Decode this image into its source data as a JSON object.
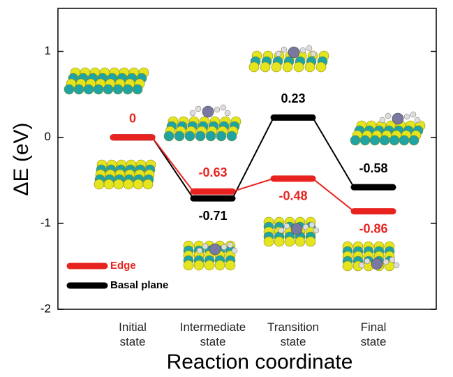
{
  "chart_data": {
    "type": "energy_levels",
    "xlabel": "Reaction coordinate",
    "ylabel": "ΔE (eV)",
    "categories": [
      "Initial state",
      "Intermediate state",
      "Transition state",
      "Final state"
    ],
    "series": [
      {
        "name": "Basal plane",
        "color": "#000000",
        "values": [
          0,
          -0.71,
          0.23,
          -0.58
        ],
        "value_labels": [
          null,
          "-0.71",
          "0.23",
          "-0.58"
        ]
      },
      {
        "name": "Edge",
        "color": "#e8231f",
        "values": [
          0,
          -0.63,
          -0.48,
          -0.86
        ],
        "value_labels": [
          "0",
          "-0.63",
          "-0.48",
          "-0.86"
        ]
      }
    ],
    "ylim": [
      -2,
      1.5
    ],
    "yticks": [
      -2,
      -1,
      0,
      1
    ],
    "legend": "lower left"
  }
}
